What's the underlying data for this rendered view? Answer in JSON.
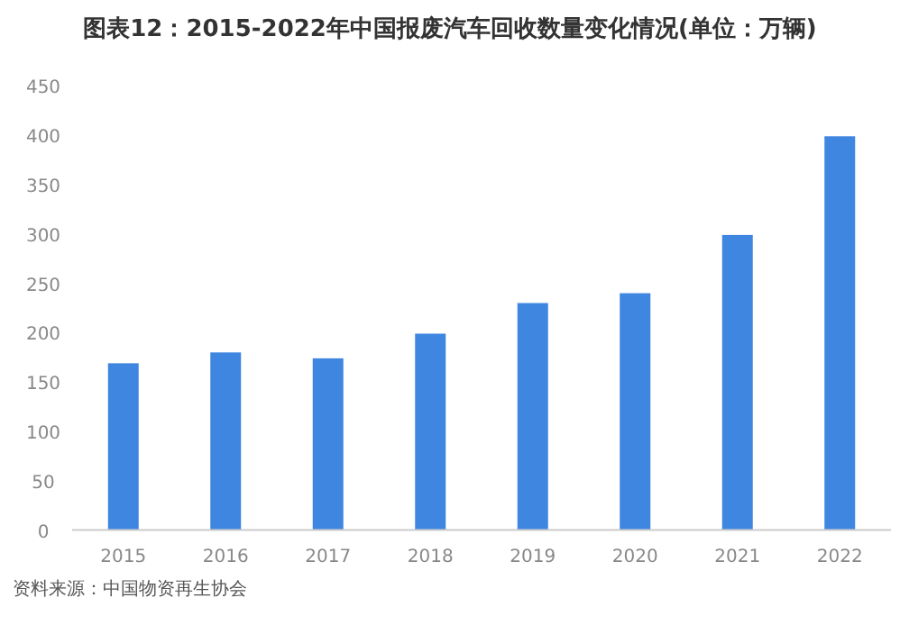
{
  "chart_data": {
    "type": "bar",
    "title": "图表12：2015-2022年中国报废汽车回收数量变化情况(单位：万辆)",
    "categories": [
      "2015",
      "2016",
      "2017",
      "2018",
      "2019",
      "2020",
      "2021",
      "2022"
    ],
    "values": [
      169,
      180,
      174,
      199,
      230,
      240,
      299,
      399
    ],
    "color": "#3f86e0",
    "ylim": [
      0,
      450
    ],
    "yticks": [
      0,
      50,
      100,
      150,
      200,
      250,
      300,
      350,
      400,
      450
    ],
    "annotations": [
      "资料来源：中国物资再生协会"
    ]
  }
}
